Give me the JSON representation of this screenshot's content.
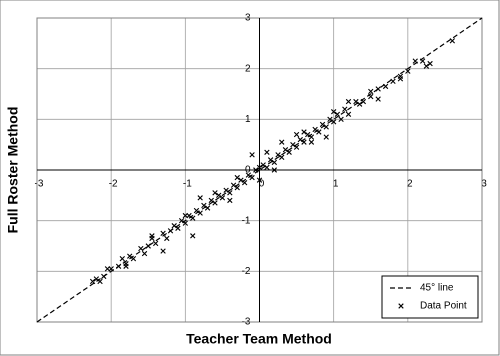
{
  "chart_data": {
    "type": "scatter",
    "xlabel": "Teacher Team Method",
    "ylabel": "Full Roster Method",
    "xlim": [
      -3,
      3
    ],
    "ylim": [
      -3,
      3
    ],
    "xticks": [
      -3,
      -2,
      -1,
      0,
      1,
      2,
      3
    ],
    "yticks": [
      -3,
      -2,
      -1,
      0,
      1,
      2,
      3
    ],
    "grid": true,
    "legend": "lower right",
    "series": [
      {
        "name": "45° line",
        "type": "line",
        "color": "#000000",
        "dashed": true,
        "x": [
          -3,
          3
        ],
        "values": [
          -3,
          3
        ]
      },
      {
        "name": "Data Point",
        "type": "scatter",
        "marker": "x",
        "color": "#000000",
        "x": [
          -2.25,
          -2.2,
          -2.15,
          -2.1,
          -2.0,
          -1.9,
          -1.85,
          -1.8,
          -1.75,
          -1.7,
          -1.6,
          -1.55,
          -1.5,
          -1.45,
          -1.4,
          -1.3,
          -1.25,
          -1.2,
          -1.15,
          -1.1,
          -1.05,
          -1.0,
          -0.95,
          -0.9,
          -0.85,
          -0.8,
          -0.75,
          -0.7,
          -0.65,
          -0.6,
          -0.55,
          -0.5,
          -0.45,
          -0.4,
          -0.35,
          -0.3,
          -0.25,
          -0.2,
          -0.15,
          -0.1,
          -0.05,
          0,
          0.05,
          0.1,
          0.15,
          0.2,
          0.25,
          0.3,
          0.35,
          0.4,
          0.45,
          0.5,
          0.55,
          0.6,
          0.65,
          0.7,
          0.75,
          0.8,
          0.85,
          0.9,
          0.95,
          1.0,
          1.05,
          1.1,
          1.15,
          1.2,
          1.3,
          1.4,
          1.5,
          1.6,
          1.7,
          1.8,
          1.9,
          2.0,
          2.1,
          2.2,
          2.3,
          2.6,
          -1.3,
          -1.0,
          -0.8,
          -0.4,
          -0.1,
          0.1,
          0.3,
          0.5,
          0.9,
          1.2,
          1.6,
          2.25,
          -2.05,
          -1.45,
          -0.6,
          0.0,
          0.6,
          1.35,
          -0.3,
          0.2,
          0.7,
          1.0,
          1.5,
          1.9,
          -0.9,
          -1.8
        ],
        "values": [
          -2.2,
          -2.15,
          -2.2,
          -2.1,
          -1.95,
          -1.9,
          -1.75,
          -1.85,
          -1.7,
          -1.75,
          -1.55,
          -1.65,
          -1.5,
          -1.35,
          -1.45,
          -1.25,
          -1.35,
          -1.2,
          -1.1,
          -1.15,
          -1.0,
          -1.05,
          -0.9,
          -0.95,
          -0.8,
          -0.85,
          -0.7,
          -0.75,
          -0.6,
          -0.65,
          -0.5,
          -0.55,
          -0.4,
          -0.45,
          -0.3,
          -0.35,
          -0.2,
          -0.25,
          -0.1,
          -0.15,
          0.0,
          0.05,
          0.1,
          0.05,
          0.2,
          0.15,
          0.3,
          0.25,
          0.4,
          0.35,
          0.5,
          0.45,
          0.6,
          0.55,
          0.7,
          0.65,
          0.8,
          0.75,
          0.9,
          0.85,
          1.0,
          0.95,
          1.1,
          1.0,
          1.2,
          1.1,
          1.35,
          1.35,
          1.45,
          1.6,
          1.65,
          1.75,
          1.85,
          1.95,
          2.15,
          2.15,
          2.1,
          2.55,
          -1.6,
          -0.9,
          -0.55,
          -0.6,
          0.3,
          0.35,
          0.55,
          0.7,
          0.65,
          1.35,
          1.4,
          2.05,
          -1.95,
          -1.3,
          -0.45,
          -0.2,
          0.75,
          1.3,
          -0.15,
          0.0,
          0.55,
          1.15,
          1.55,
          1.8,
          -1.3,
          -1.9
        ]
      }
    ]
  }
}
